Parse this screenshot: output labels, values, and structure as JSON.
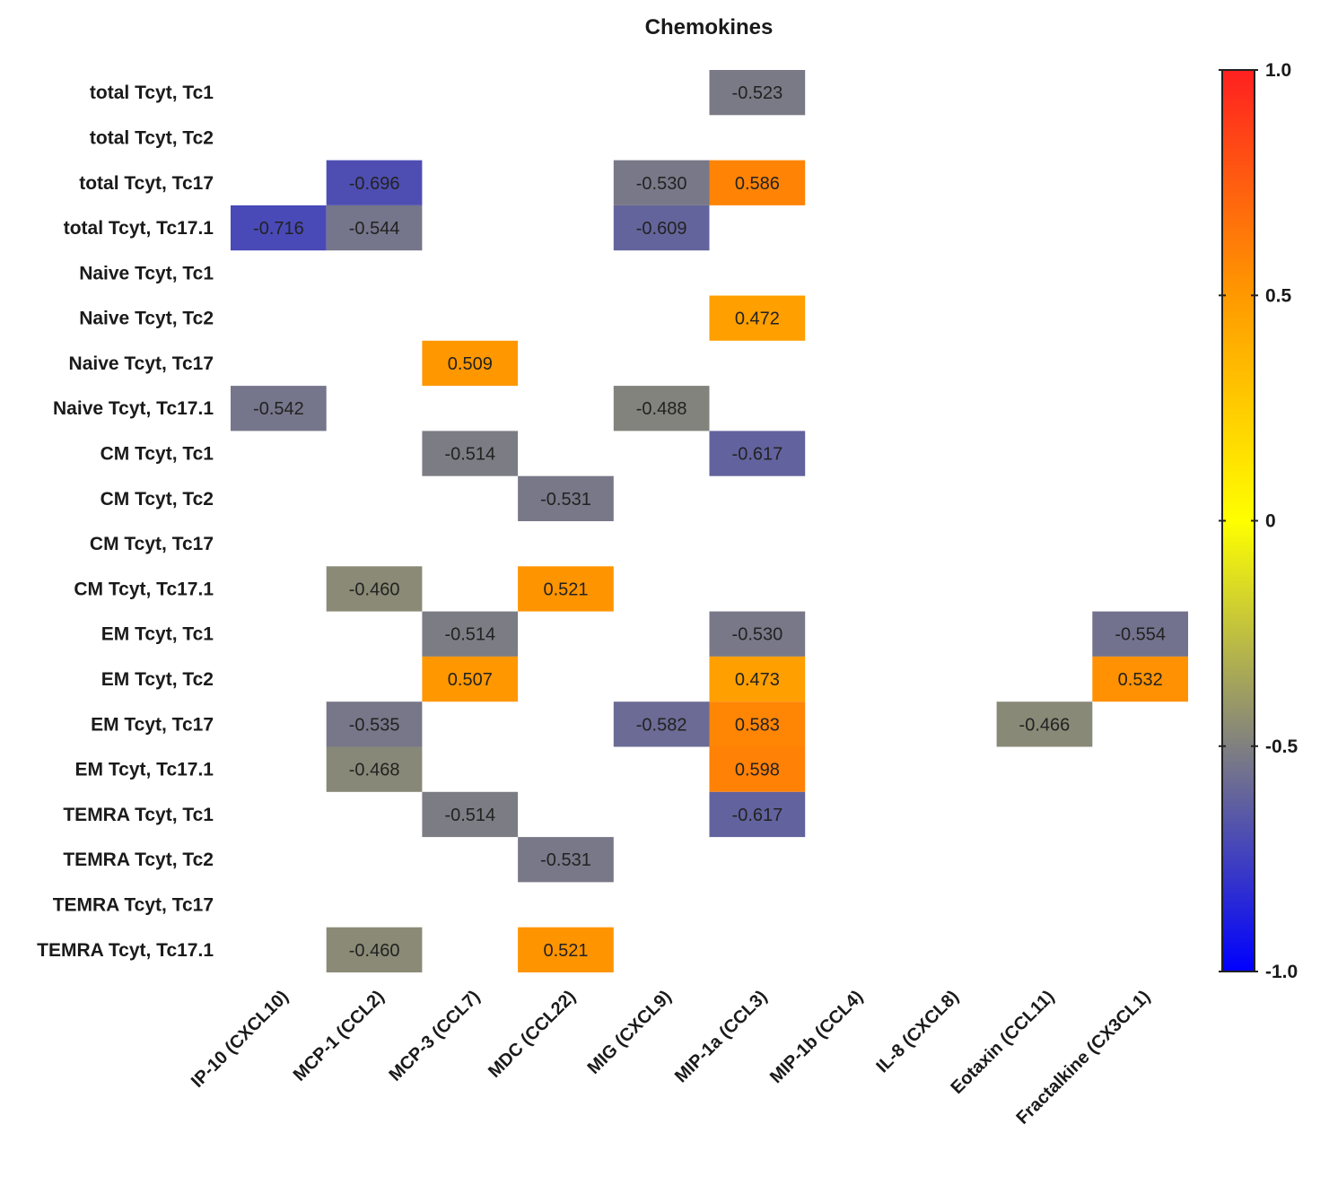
{
  "chart_data": {
    "type": "heatmap",
    "title": "Chemokines",
    "columns": [
      "IP-10 (CXCL10)",
      "MCP-1 (CCL2)",
      "MCP-3 (CCL7)",
      "MDC (CCL22)",
      "MIG (CXCL9)",
      "MIP-1a (CCL3)",
      "MIP-1b (CCL4)",
      "IL-8 (CXCL8)",
      "Eotaxin (CCL11)",
      "Fractalkine (CX3CL1)"
    ],
    "rows": [
      "total Tcyt, Tc1",
      "total Tcyt, Tc2",
      "total Tcyt, Tc17",
      "total Tcyt, Tc17.1",
      "Naive Tcyt, Tc1",
      "Naive Tcyt, Tc2",
      "Naive Tcyt, Tc17",
      "Naive Tcyt, Tc17.1",
      "CM Tcyt, Tc1",
      "CM Tcyt, Tc2",
      "CM Tcyt, Tc17",
      "CM Tcyt, Tc17.1",
      "EM Tcyt, Tc1",
      "EM Tcyt, Tc2",
      "EM Tcyt, Tc17",
      "EM Tcyt, Tc17.1",
      "TEMRA Tcyt, Tc1",
      "TEMRA Tcyt, Tc2",
      "TEMRA Tcyt, Tc17",
      "TEMRA Tcyt, Tc17.1"
    ],
    "cells": [
      {
        "row": 0,
        "col": 5,
        "value": -0.523,
        "label": "-0.523"
      },
      {
        "row": 2,
        "col": 1,
        "value": -0.696,
        "label": "-0.696"
      },
      {
        "row": 2,
        "col": 4,
        "value": -0.53,
        "label": "-0.530"
      },
      {
        "row": 2,
        "col": 5,
        "value": 0.586,
        "label": "0.586"
      },
      {
        "row": 3,
        "col": 0,
        "value": -0.716,
        "label": "-0.716"
      },
      {
        "row": 3,
        "col": 1,
        "value": -0.544,
        "label": "-0.544"
      },
      {
        "row": 3,
        "col": 4,
        "value": -0.609,
        "label": "-0.609"
      },
      {
        "row": 5,
        "col": 5,
        "value": 0.472,
        "label": "0.472"
      },
      {
        "row": 6,
        "col": 2,
        "value": 0.509,
        "label": "0.509"
      },
      {
        "row": 7,
        "col": 0,
        "value": -0.542,
        "label": "-0.542"
      },
      {
        "row": 7,
        "col": 4,
        "value": -0.488,
        "label": "-0.488"
      },
      {
        "row": 8,
        "col": 2,
        "value": -0.514,
        "label": "-0.514"
      },
      {
        "row": 8,
        "col": 5,
        "value": -0.617,
        "label": "-0.617"
      },
      {
        "row": 9,
        "col": 3,
        "value": -0.531,
        "label": "-0.531"
      },
      {
        "row": 11,
        "col": 1,
        "value": -0.46,
        "label": "-0.460"
      },
      {
        "row": 11,
        "col": 3,
        "value": 0.521,
        "label": "0.521"
      },
      {
        "row": 12,
        "col": 2,
        "value": -0.514,
        "label": "-0.514"
      },
      {
        "row": 12,
        "col": 5,
        "value": -0.53,
        "label": "-0.530"
      },
      {
        "row": 12,
        "col": 9,
        "value": -0.554,
        "label": "-0.554"
      },
      {
        "row": 13,
        "col": 2,
        "value": 0.507,
        "label": "0.507"
      },
      {
        "row": 13,
        "col": 5,
        "value": 0.473,
        "label": "0.473"
      },
      {
        "row": 13,
        "col": 9,
        "value": 0.532,
        "label": "0.532"
      },
      {
        "row": 14,
        "col": 1,
        "value": -0.535,
        "label": "-0.535"
      },
      {
        "row": 14,
        "col": 4,
        "value": -0.582,
        "label": "-0.582"
      },
      {
        "row": 14,
        "col": 5,
        "value": 0.583,
        "label": "0.583"
      },
      {
        "row": 14,
        "col": 8,
        "value": -0.466,
        "label": "-0.466"
      },
      {
        "row": 15,
        "col": 1,
        "value": -0.468,
        "label": "-0.468"
      },
      {
        "row": 15,
        "col": 5,
        "value": 0.598,
        "label": "0.598"
      },
      {
        "row": 16,
        "col": 2,
        "value": -0.514,
        "label": "-0.514"
      },
      {
        "row": 16,
        "col": 5,
        "value": -0.617,
        "label": "-0.617"
      },
      {
        "row": 17,
        "col": 3,
        "value": -0.531,
        "label": "-0.531"
      },
      {
        "row": 19,
        "col": 1,
        "value": -0.46,
        "label": "-0.460"
      },
      {
        "row": 19,
        "col": 3,
        "value": 0.521,
        "label": "0.521"
      }
    ],
    "colorbar": {
      "range": [
        -1.0,
        1.0
      ],
      "ticks": [
        1.0,
        0.5,
        0,
        -0.5,
        -1.0
      ],
      "tick_labels": [
        "1.0",
        "0.5",
        "0",
        "-0.5",
        "-1.0"
      ],
      "stops": [
        {
          "value": -1.0,
          "color": "#0000ff"
        },
        {
          "value": -0.5,
          "color": "#808080"
        },
        {
          "value": 0.0,
          "color": "#ffff00"
        },
        {
          "value": 0.5,
          "color": "#ff9900"
        },
        {
          "value": 1.0,
          "color": "#ff2020"
        }
      ]
    }
  }
}
